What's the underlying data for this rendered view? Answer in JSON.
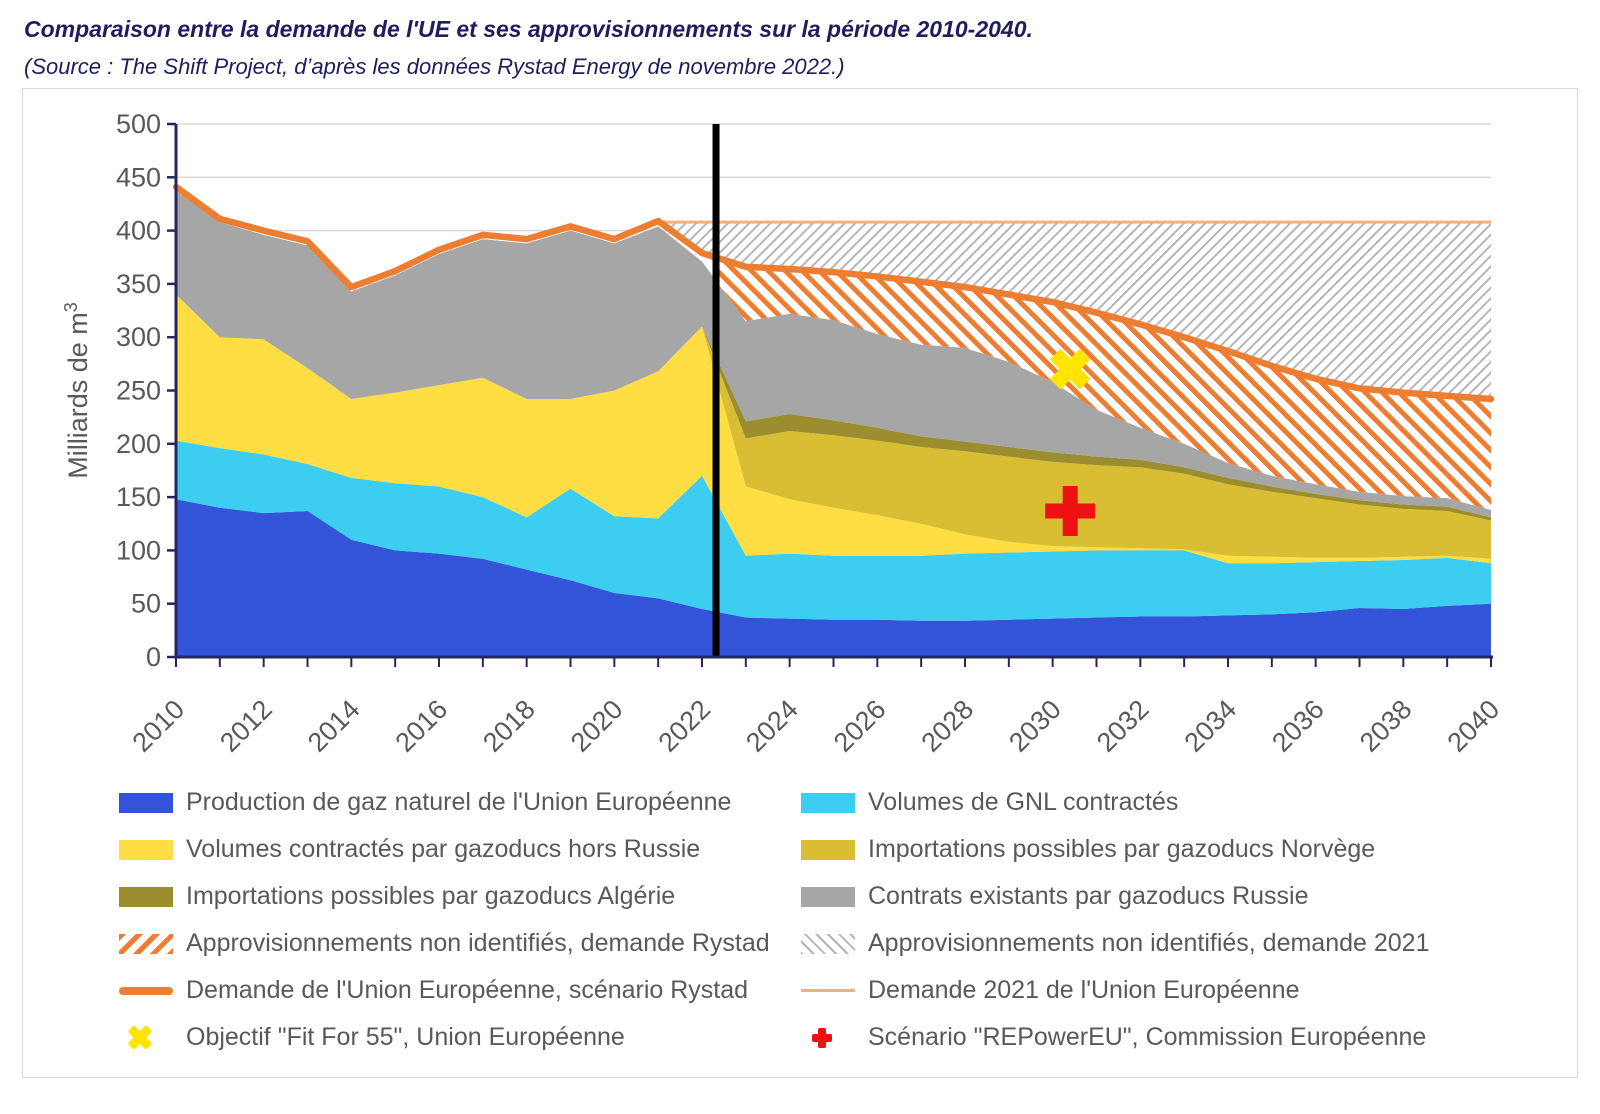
{
  "title": "Comparaison entre la demande de l'UE et ses approvisionnements sur la période 2010-2040.",
  "subtitle": "(Source : The Shift Project, d’après les données Rystad Energy de novembre 2022.)",
  "chart_data": {
    "type": "area",
    "stacked": true,
    "ylabel_base": "Milliards de m",
    "ylabel_exp": "3",
    "ylim": [
      0,
      500
    ],
    "ytick_step": 50,
    "xlim": [
      2010,
      2040
    ],
    "x_label_step": 2,
    "grid": true,
    "axis_color": "#26265e",
    "grid_color": "#dadada",
    "tick_label_color": "#595959",
    "x": [
      2010,
      2011,
      2012,
      2013,
      2014,
      2015,
      2016,
      2017,
      2018,
      2019,
      2020,
      2021,
      2022,
      2023,
      2024,
      2025,
      2026,
      2027,
      2028,
      2029,
      2030,
      2031,
      2032,
      2033,
      2034,
      2035,
      2036,
      2037,
      2038,
      2039,
      2040
    ],
    "series": [
      {
        "id": "production_ue",
        "name": "Production de gaz naturel de l'Union Européenne",
        "color": "#3354d8",
        "values": [
          148,
          140,
          135,
          137,
          110,
          100,
          97,
          92,
          82,
          72,
          60,
          55,
          45,
          37,
          36,
          35,
          35,
          34,
          34,
          35,
          36,
          37,
          38,
          38,
          39,
          40,
          42,
          46,
          45,
          48,
          50
        ]
      },
      {
        "id": "gnl_contractes",
        "name": "Volumes de GNL contractés",
        "color": "#3dcdf0",
        "values": [
          55,
          56,
          55,
          44,
          58,
          63,
          63,
          58,
          49,
          86,
          72,
          75,
          125,
          58,
          61,
          60,
          60,
          61,
          63,
          63,
          63,
          63,
          62,
          62,
          49,
          48,
          47,
          44,
          46,
          45,
          38
        ]
      },
      {
        "id": "gazoducs_hors_russie",
        "name": "Volumes contractés par gazoducs hors Russie",
        "color": "#ffde44",
        "values": [
          137,
          104,
          108,
          90,
          74,
          85,
          95,
          112,
          111,
          84,
          118,
          138,
          140,
          65,
          51,
          45,
          38,
          30,
          18,
          10,
          5,
          3,
          2,
          1,
          7,
          6,
          4,
          3,
          3,
          2,
          4
        ]
      },
      {
        "id": "gazoducs_norvege",
        "name": "Importations possibles par gazoducs Norvège",
        "color": "#d9be33",
        "values": [
          0,
          0,
          0,
          0,
          0,
          0,
          0,
          0,
          0,
          0,
          0,
          0,
          0,
          45,
          64,
          68,
          70,
          72,
          78,
          80,
          79,
          77,
          76,
          71,
          67,
          61,
          56,
          50,
          45,
          42,
          36
        ]
      },
      {
        "id": "gazoducs_algerie",
        "name": "Importations possibles par gazoducs Algérie",
        "color": "#9c8d2e",
        "values": [
          0,
          0,
          0,
          0,
          0,
          0,
          0,
          0,
          0,
          0,
          0,
          0,
          0,
          16,
          16,
          14,
          12,
          10,
          9,
          9,
          9,
          8,
          7,
          6,
          6,
          5,
          4,
          4,
          4,
          4,
          3
        ]
      },
      {
        "id": "gazoducs_russie",
        "name": "Contrats existants par gazoducs Russie",
        "color": "#a6a6a6",
        "values": [
          97,
          108,
          98,
          115,
          101,
          110,
          123,
          130,
          146,
          158,
          138,
          136,
          61,
          94,
          94,
          94,
          88,
          86,
          88,
          80,
          66,
          44,
          30,
          22,
          14,
          10,
          9,
          8,
          8,
          8,
          7
        ]
      }
    ],
    "lines": [
      {
        "id": "demande_rystad",
        "name": "Demande de l'Union Européenne, scénario Rystad",
        "color": "#ed7d31",
        "width": 6.5,
        "values": [
          441,
          411,
          400,
          390,
          347,
          362,
          382,
          396,
          392,
          404,
          392,
          409,
          379,
          366,
          364,
          361,
          357,
          352,
          347,
          340,
          333,
          323,
          312,
          300,
          287,
          273,
          261,
          252,
          248,
          245,
          242
        ]
      },
      {
        "id": "demande_2021",
        "name": "Demande 2021 de l'Union Européenne",
        "color": "#f2b179",
        "width": 3,
        "y": 408,
        "x_start": 2021.03,
        "x_end": 2040
      }
    ],
    "hatch_areas": [
      {
        "id": "non_identifies_rystad",
        "name": "Approvisionnements non identifiés, demande Rystad",
        "color": "#ed7d31",
        "direction": "up",
        "x_start": 2022.32,
        "top": "demande_rystad",
        "bottom": "stack_top"
      },
      {
        "id": "non_identifies_2021",
        "name": "Approvisionnements non identifiés, demande 2021",
        "color": "#b3b3b3",
        "direction": "down",
        "x_start": 2021.03,
        "top": 408,
        "bottom": "demande_rystad"
      }
    ],
    "markers": [
      {
        "id": "fit_for_55",
        "name": "Objectif \"Fit For 55\", Union Européenne",
        "shape": "x",
        "color": "#ffe400",
        "x": 2030.4,
        "y": 270
      },
      {
        "id": "repowereu",
        "name": "Scénario \"REPowerEU\", Commission Européenne",
        "shape": "plus",
        "color": "#ee1111",
        "x": 2030.4,
        "y": 137
      }
    ],
    "annotations": [
      {
        "id": "rupture_2022",
        "type": "vline",
        "x": 2022.32,
        "color": "#000000",
        "width": 7
      }
    ]
  },
  "legend": {
    "items": [
      {
        "label": "Production de gaz naturel de l'Union Européenne",
        "swatch": "area",
        "color": "#3354d8"
      },
      {
        "label": "Volumes de GNL contractés",
        "swatch": "area",
        "color": "#3dcdf0"
      },
      {
        "label": "Volumes contractés par gazoducs hors Russie",
        "swatch": "area",
        "color": "#ffde44"
      },
      {
        "label": "Importations possibles par gazoducs Norvège",
        "swatch": "area",
        "color": "#d9be33"
      },
      {
        "label": "Importations possibles par gazoducs Algérie",
        "swatch": "area",
        "color": "#9c8d2e"
      },
      {
        "label": "Contrats existants par gazoducs Russie",
        "swatch": "area",
        "color": "#a6a6a6"
      },
      {
        "label": "Approvisionnements non identifiés, demande Rystad",
        "swatch": "hatch-up",
        "color": "#ed7d31"
      },
      {
        "label": "Approvisionnements non identifiés, demande 2021",
        "swatch": "hatch-down",
        "color": "#b3b3b3"
      },
      {
        "label": "Demande de l'Union Européenne, scénario Rystad",
        "swatch": "line-thick",
        "color": "#ed7d31"
      },
      {
        "label": "Demande 2021 de l'Union Européenne",
        "swatch": "line-thin",
        "color": "#f2b179"
      },
      {
        "label": "Objectif \"Fit For 55\", Union Européenne",
        "swatch": "marker-x",
        "color": "#ffe400"
      },
      {
        "label": "Scénario \"REPowerEU\", Commission Européenne",
        "swatch": "marker-plus",
        "color": "#ee1111"
      }
    ]
  }
}
